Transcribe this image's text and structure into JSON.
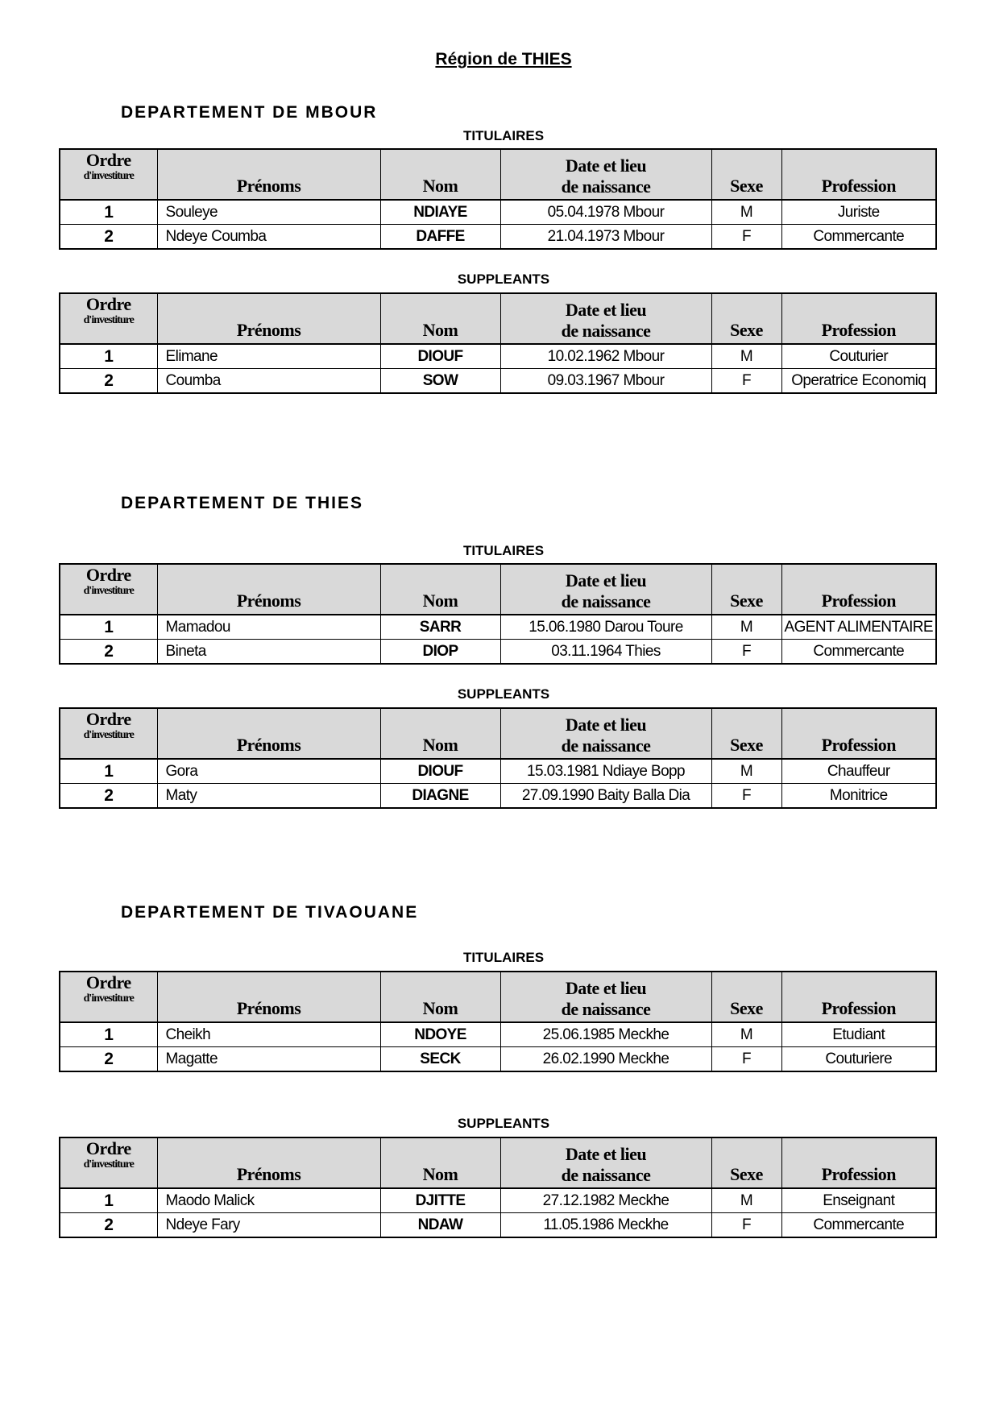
{
  "region_title": "Région de THIES",
  "headers": {
    "ordre": "Ordre",
    "ordre_sub": "d'investiture",
    "prenoms": "Prénoms",
    "nom": "Nom",
    "date_line1": "Date et lieu",
    "date_line2": "de naissance",
    "sexe": "Sexe",
    "profession": "Profession"
  },
  "departments": [
    {
      "title": "DEPARTEMENT  DE  MBOUR",
      "tables": [
        {
          "label": "TITULAIRES",
          "rows": [
            {
              "ordre": "1",
              "prenom": "Souleye",
              "nom": "NDIAYE",
              "date_lieu": "05.04.1978 Mbour",
              "sexe": "M",
              "profession": "Juriste"
            },
            {
              "ordre": "2",
              "prenom": "Ndeye Coumba",
              "nom": "DAFFE",
              "date_lieu": "21.04.1973 Mbour",
              "sexe": "F",
              "profession": "Commercante"
            }
          ]
        },
        {
          "label": "SUPPLEANTS",
          "rows": [
            {
              "ordre": "1",
              "prenom": "Elimane",
              "nom": "DIOUF",
              "date_lieu": "10.02.1962 Mbour",
              "sexe": "M",
              "profession": "Couturier"
            },
            {
              "ordre": "2",
              "prenom": "Coumba",
              "nom": "SOW",
              "date_lieu": "09.03.1967 Mbour",
              "sexe": "F",
              "profession": "Operatrice Economiq"
            }
          ]
        }
      ]
    },
    {
      "title": "DEPARTEMENT  DE  THIES",
      "tables": [
        {
          "label": "TITULAIRES",
          "rows": [
            {
              "ordre": "1",
              "prenom": "Mamadou",
              "nom": "SARR",
              "date_lieu": "15.06.1980 Darou Toure",
              "sexe": "M",
              "profession": "AGENT ALIMENTAIRE"
            },
            {
              "ordre": "2",
              "prenom": "Bineta",
              "nom": "DIOP",
              "date_lieu": "03.11.1964 Thies",
              "sexe": "F",
              "profession": "Commercante"
            }
          ]
        },
        {
          "label": "SUPPLEANTS",
          "rows": [
            {
              "ordre": "1",
              "prenom": "Gora",
              "nom": "DIOUF",
              "date_lieu": "15.03.1981 Ndiaye Bopp",
              "sexe": "M",
              "profession": "Chauffeur"
            },
            {
              "ordre": "2",
              "prenom": "Maty",
              "nom": "DIAGNE",
              "date_lieu": "27.09.1990 Baity Balla Dia",
              "sexe": "F",
              "profession": "Monitrice"
            }
          ]
        }
      ]
    },
    {
      "title": "DEPARTEMENT  DE  TIVAOUANE",
      "tables": [
        {
          "label": "TITULAIRES",
          "rows": [
            {
              "ordre": "1",
              "prenom": "Cheikh",
              "nom": "NDOYE",
              "date_lieu": "25.06.1985 Meckhe",
              "sexe": "M",
              "profession": "Etudiant"
            },
            {
              "ordre": "2",
              "prenom": "Magatte",
              "nom": "SECK",
              "date_lieu": "26.02.1990 Meckhe",
              "sexe": "F",
              "profession": "Couturiere"
            }
          ]
        },
        {
          "label": "SUPPLEANTS",
          "rows": [
            {
              "ordre": "1",
              "prenom": "Maodo Malick",
              "nom": "DJITTE",
              "date_lieu": "27.12.1982 Meckhe",
              "sexe": "M",
              "profession": "Enseignant"
            },
            {
              "ordre": "2",
              "prenom": "Ndeye Fary",
              "nom": "NDAW",
              "date_lieu": "11.05.1986 Meckhe",
              "sexe": "F",
              "profession": "Commercante"
            }
          ]
        }
      ]
    }
  ]
}
